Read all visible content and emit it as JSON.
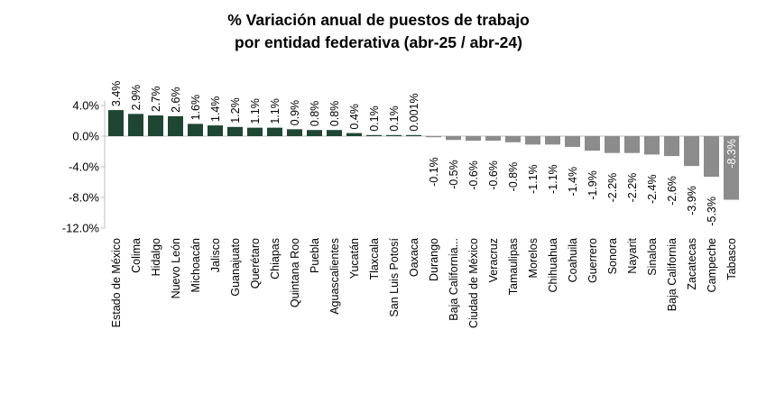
{
  "chart_data": {
    "type": "bar",
    "title_lines": [
      "% Variación anual de puestos de trabajo",
      "por entidad federativa (abr-25 / abr-24)"
    ],
    "xlabel": "",
    "ylabel": "",
    "ylim": [
      -12,
      6
    ],
    "yticks": [
      {
        "value": 4,
        "label": "4.0%"
      },
      {
        "value": 0,
        "label": "0.0%"
      },
      {
        "value": -4,
        "label": "-4.0%"
      },
      {
        "value": -8,
        "label": "-8.0%"
      },
      {
        "value": -12,
        "label": "-12.0%"
      }
    ],
    "grid": false,
    "legend": "none",
    "colors": {
      "positive": "#1e4632",
      "negative": "#8c8c8c",
      "axis": "#bfbfbf"
    },
    "categories": [
      "Estado de México",
      "Colima",
      "Hidalgo",
      "Nuevo León",
      "Michoacán",
      "Jalisco",
      "Guanajuato",
      "Querétaro",
      "Chiapas",
      "Quintana Roo",
      "Puebla",
      "Aguascalientes",
      "Yucatán",
      "Tlaxcala",
      "San Luis Potosí",
      "Oaxaca",
      "Durango",
      "Baja California...",
      "Ciudad de México",
      "Veracruz",
      "Tamaulipas",
      "Morelos",
      "Chihuahua",
      "Coahuila",
      "Guerrero",
      "Sonora",
      "Nayarit",
      "Sinaloa",
      "Baja California",
      "Zacatecas",
      "Campeche",
      "Tabasco"
    ],
    "values": [
      3.4,
      2.9,
      2.7,
      2.6,
      1.6,
      1.4,
      1.2,
      1.1,
      1.1,
      0.9,
      0.8,
      0.8,
      0.4,
      0.1,
      0.1,
      0.001,
      -0.1,
      -0.5,
      -0.6,
      -0.6,
      -0.8,
      -1.1,
      -1.1,
      -1.4,
      -1.9,
      -2.2,
      -2.2,
      -2.4,
      -2.6,
      -3.9,
      -5.3,
      -8.3
    ],
    "data_labels": [
      "3.4%",
      "2.9%",
      "2.7%",
      "2.6%",
      "1.6%",
      "1.4%",
      "1.2%",
      "1.1%",
      "1.1%",
      "0.9%",
      "0.8%",
      "0.8%",
      "0.4%",
      "0.1%",
      "0.1%",
      "0.001%",
      "-0.1%",
      "-0.5%",
      "-0.6%",
      "-0.6%",
      "-0.8%",
      "-1.1%",
      "-1.1%",
      "-1.4%",
      "-1.9%",
      "-2.2%",
      "-2.2%",
      "-2.4%",
      "-2.6%",
      "-3.9%",
      "-5.3%",
      "-8.3%"
    ]
  }
}
